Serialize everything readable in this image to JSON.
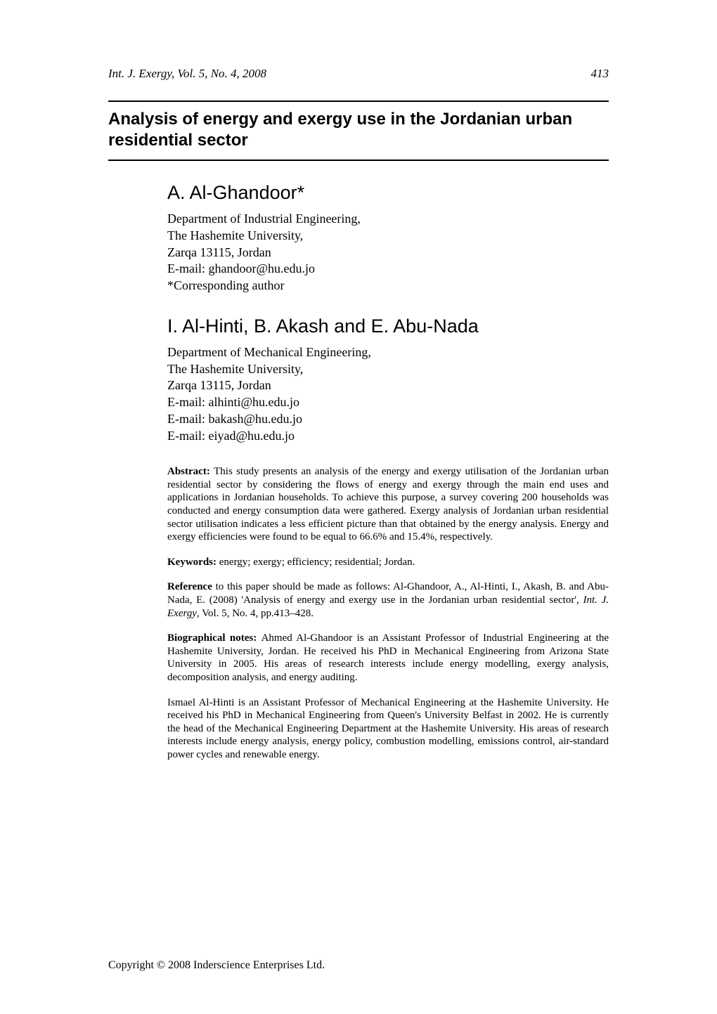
{
  "header": {
    "journal_ref": "Int. J. Exergy, Vol. 5, No. 4, 2008",
    "page_number": "413"
  },
  "title": "Analysis of energy and exergy use in the Jordanian urban residential sector",
  "author_block_1": {
    "name": "A. Al-Ghandoor*",
    "line1": "Department of Industrial Engineering,",
    "line2": "The Hashemite University,",
    "line3": "Zarqa 13115, Jordan",
    "line4": "E-mail: ghandoor@hu.edu.jo",
    "line5": "*Corresponding author"
  },
  "author_block_2": {
    "name": "I. Al-Hinti, B. Akash and E. Abu-Nada",
    "line1": "Department of Mechanical Engineering,",
    "line2": "The Hashemite University,",
    "line3": "Zarqa 13115, Jordan",
    "line4": "E-mail: alhinti@hu.edu.jo",
    "line5": "E-mail: bakash@hu.edu.jo",
    "line6": "E-mail: eiyad@hu.edu.jo"
  },
  "abstract": {
    "label": "Abstract: ",
    "text": "This study presents an analysis of the energy and exergy utilisation of the Jordanian urban residential sector by considering the flows of energy and exergy through the main end uses and applications in Jordanian households. To achieve this purpose, a survey covering 200 households was conducted and energy consumption data were gathered. Exergy analysis of Jordanian urban residential sector utilisation indicates a less efficient picture than that obtained by the energy analysis. Energy and exergy efficiencies were found to be equal to 66.6% and 15.4%, respectively."
  },
  "keywords": {
    "label": "Keywords: ",
    "text": "energy; exergy; efficiency; residential; Jordan."
  },
  "reference": {
    "label": "Reference",
    "text_a": " to this paper should be made as follows: Al-Ghandoor, A., Al-Hinti, I., Akash, B. and Abu-Nada, E. (2008) 'Analysis of energy and exergy use in the Jordanian urban residential sector', ",
    "ital": "Int. J. Exergy",
    "text_b": ", Vol. 5, No. 4, pp.413–428."
  },
  "bio": {
    "label": "Biographical notes: ",
    "para1": "Ahmed Al-Ghandoor is an Assistant Professor of Industrial Engineering at the Hashemite University, Jordan. He received his PhD in Mechanical Engineering from Arizona State University in 2005. His areas of research interests include energy modelling, exergy analysis, decomposition analysis, and energy auditing.",
    "para2": "Ismael Al-Hinti is an Assistant Professor of Mechanical Engineering at the Hashemite University. He received his PhD in Mechanical Engineering from Queen's University Belfast in 2002. He is currently the head of the Mechanical Engineering Department at the Hashemite University. His areas of research interests include energy analysis, energy policy, combustion modelling, emissions control, air-standard power cycles and renewable energy."
  },
  "footer": {
    "copyright": "Copyright © 2008 Inderscience Enterprises Ltd."
  }
}
